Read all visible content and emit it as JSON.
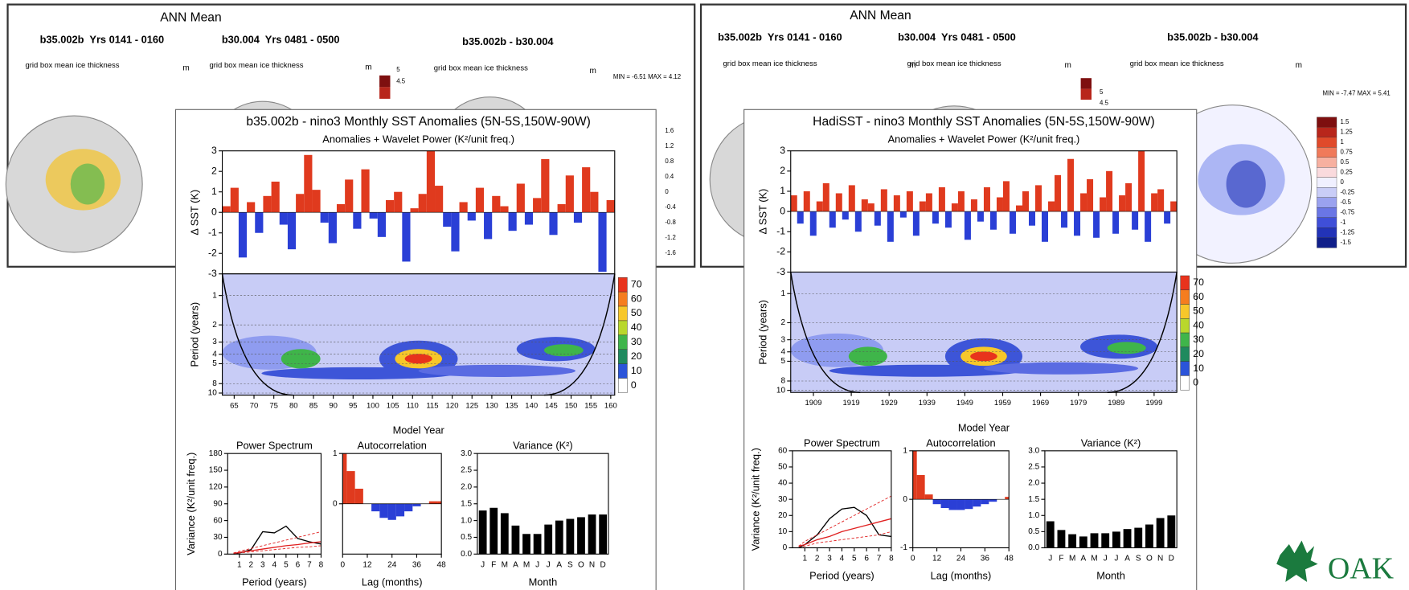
{
  "map_panels": [
    {
      "title": "ANN Mean",
      "headers": [
        "b35.002b  Yrs 0141 - 0160",
        "b30.004  Yrs 0481 - 0500",
        "b35.002b - b30.004"
      ],
      "plot_labels": [
        "grid box mean ice thickness",
        "grid box mean ice thickness",
        "grid box mean ice thickness"
      ],
      "units": [
        "m",
        "m",
        "m"
      ],
      "minmax": "MIN = -6.51 MAX = 4.12",
      "colorbar_a": [
        "5",
        "4.5"
      ],
      "colorbar_b": [
        "1.6",
        "1.2",
        "0.8",
        "0.4",
        "0",
        "-0.4",
        "-0.8",
        "-1.2",
        "-1.6"
      ]
    },
    {
      "title": "ANN Mean",
      "headers": [
        "b35.002b  Yrs 0141 - 0160",
        "b30.004  Yrs 0481 - 0500",
        "b35.002b - b30.004"
      ],
      "plot_labels": [
        "grid box mean ice thickness",
        "grid box mean ice thickness",
        "grid box mean ice thickness"
      ],
      "units": [
        "m",
        "m",
        "m"
      ],
      "minmax": "MIN = -7.47 MAX = 5.41",
      "colorbar_a": [
        "5",
        "4.5"
      ],
      "colorbar_b": [
        "1.5",
        "1.25",
        "1",
        "0.75",
        "0.5",
        "0.25",
        "0",
        "-0.25",
        "-0.5",
        "-0.75",
        "-1",
        "-1.25",
        "-1.5"
      ]
    }
  ],
  "logo": "OAK",
  "chart_data": [
    {
      "type": "anomaly",
      "title": "b35.002b - nino3 Monthly SST Anomalies (5N-5S,150W-90W)",
      "subtitle": "Anomalies + Wavelet Power (K²/unit freq.)",
      "ylabel": "Δ SST (K)",
      "ylim": [
        -3,
        3
      ],
      "yticks": [
        -3,
        -2,
        -1,
        0,
        1,
        2,
        3
      ],
      "pos_color": "#e03a1e",
      "neg_color": "#2a3fd6",
      "values": [
        0.3,
        1.2,
        -2.2,
        0.5,
        -1.0,
        0.8,
        1.5,
        -0.6,
        -1.8,
        0.9,
        2.8,
        1.1,
        -0.5,
        -1.5,
        0.4,
        1.6,
        -0.8,
        2.1,
        -0.3,
        -1.2,
        0.6,
        1.0,
        -2.4,
        0.2,
        0.9,
        3.0,
        1.3,
        -0.7,
        -1.9,
        0.5,
        -0.4,
        1.2,
        -1.3,
        0.8,
        0.3,
        -0.9,
        1.4,
        -0.6,
        0.7,
        2.6,
        -1.1,
        0.4,
        1.8,
        -0.5,
        2.2,
        1.0,
        -2.9,
        0.6
      ]
    },
    {
      "type": "contour",
      "ylabel": "Period (years)",
      "xlabel": "Model Year",
      "log": true,
      "invert": true,
      "ylim": [
        0.6,
        10.5
      ],
      "yticks": [
        1,
        2,
        3,
        4,
        5,
        8,
        10
      ],
      "xlim": [
        62,
        161
      ],
      "xticks": [
        65,
        70,
        75,
        80,
        85,
        90,
        95,
        100,
        105,
        110,
        115,
        120,
        125,
        130,
        135,
        140,
        145,
        150,
        155,
        160
      ],
      "levels": [
        70,
        60,
        50,
        40,
        30,
        20,
        10,
        0
      ],
      "level_colors": [
        "#e8331c",
        "#f57d1f",
        "#f7c72a",
        "#b9d72c",
        "#3fb54a",
        "#1f8a5e",
        "#2b54d9",
        "#ffffff"
      ]
    },
    {
      "type": "line",
      "title": "Power Spectrum",
      "ylabel": "Variance (K²/unit freq.)",
      "xlabel": "Period (years)",
      "xlim": [
        0,
        8
      ],
      "xticks": [
        1,
        2,
        3,
        4,
        5,
        6,
        7,
        8
      ],
      "ylim": [
        0,
        180
      ],
      "yticks": [
        0,
        30,
        60,
        90,
        120,
        150,
        180
      ],
      "x": [
        0.5,
        1,
        2,
        3,
        4,
        5,
        6,
        7,
        8
      ],
      "series": [
        {
          "color": "#000000",
          "dash": false,
          "values": [
            0,
            2,
            8,
            40,
            38,
            50,
            28,
            22,
            18
          ]
        },
        {
          "color": "#e02020",
          "dash": false,
          "values": [
            1,
            3,
            6,
            9,
            12,
            15,
            17,
            20,
            22
          ]
        },
        {
          "color": "#e02020",
          "dash": true,
          "values": [
            2,
            5,
            10,
            15,
            20,
            25,
            30,
            35,
            40
          ]
        },
        {
          "color": "#e02020",
          "dash": true,
          "values": [
            1,
            2,
            4,
            6,
            8,
            10,
            12,
            13,
            15
          ]
        }
      ]
    },
    {
      "type": "area",
      "title": "Autocorrelation",
      "xlabel": "Lag (months)",
      "xlim": [
        0,
        48
      ],
      "xticks": [
        0,
        12,
        24,
        36,
        48
      ],
      "ylim": [
        -1,
        1
      ],
      "yticks": [
        0,
        1
      ],
      "pos_color": "#e03a1e",
      "neg_color": "#2a3fd6",
      "x": [
        0,
        4,
        8,
        12,
        16,
        20,
        24,
        28,
        32,
        36,
        40,
        44,
        48
      ],
      "values": [
        1,
        0.65,
        0.3,
        0,
        -0.15,
        -0.28,
        -0.32,
        -0.25,
        -0.15,
        -0.05,
        0,
        0.05,
        0.05
      ]
    },
    {
      "type": "bar",
      "title": "Variance (K²)",
      "xlabel": "Month",
      "ylim": [
        0,
        3
      ],
      "yticks": [
        {
          "value": 0,
          "label": "0.0"
        },
        0.5,
        {
          "value": 1,
          "label": "1.0"
        },
        1.5,
        {
          "value": 2,
          "label": "2.0"
        },
        2.5,
        {
          "value": 3,
          "label": "3.0"
        }
      ],
      "color": "#000000",
      "categories": [
        "J",
        "F",
        "M",
        "A",
        "M",
        "J",
        "J",
        "A",
        "S",
        "O",
        "N",
        "D"
      ],
      "values": [
        1.3,
        1.38,
        1.22,
        0.85,
        0.6,
        0.6,
        0.88,
        1.0,
        1.05,
        1.1,
        1.18,
        1.18
      ]
    },
    {
      "type": "anomaly",
      "title": "HadiSST - nino3 Monthly SST Anomalies (5N-5S,150W-90W)",
      "subtitle": "Anomalies + Wavelet Power (K²/unit freq.)",
      "ylabel": "Δ SST (K)",
      "ylim": [
        -3,
        3
      ],
      "yticks": [
        -3,
        -2,
        -1,
        0,
        1,
        2,
        3
      ],
      "pos_color": "#e03a1e",
      "neg_color": "#2a3fd6",
      "values": [
        0.8,
        -0.6,
        1.0,
        -1.2,
        0.5,
        1.4,
        -0.8,
        0.9,
        -0.4,
        1.3,
        -1.0,
        0.6,
        0.4,
        -0.7,
        1.1,
        -1.5,
        0.8,
        -0.3,
        1.0,
        -1.2,
        0.5,
        0.9,
        -0.6,
        1.2,
        -0.8,
        0.4,
        1.0,
        -1.4,
        0.6,
        -0.5,
        1.2,
        -0.9,
        0.7,
        1.5,
        -1.1,
        0.3,
        1.0,
        -0.7,
        1.3,
        -1.5,
        0.5,
        1.8,
        -0.8,
        2.6,
        -1.2,
        0.9,
        1.6,
        -1.3,
        0.7,
        2.0,
        -1.1,
        0.8,
        1.4,
        -0.9,
        3.0,
        -1.5,
        0.9,
        1.1,
        -0.6,
        0.5
      ]
    },
    {
      "type": "contour",
      "ylabel": "Period (years)",
      "xlabel": "Model Year",
      "log": true,
      "invert": true,
      "ylim": [
        0.6,
        10.5
      ],
      "yticks": [
        1,
        2,
        3,
        4,
        5,
        8,
        10
      ],
      "xlim": [
        1903,
        2005
      ],
      "xticks": [
        1909,
        1919,
        1929,
        1939,
        1949,
        1959,
        1969,
        1979,
        1989,
        1999
      ],
      "levels": [
        70,
        60,
        50,
        40,
        30,
        20,
        10,
        0
      ],
      "level_colors": [
        "#e8331c",
        "#f57d1f",
        "#f7c72a",
        "#b9d72c",
        "#3fb54a",
        "#1f8a5e",
        "#2b54d9",
        "#ffffff"
      ]
    },
    {
      "type": "line",
      "title": "Power Spectrum",
      "ylabel": "Variance (K²/unit freq.)",
      "xlabel": "Period (years)",
      "xlim": [
        0,
        8
      ],
      "xticks": [
        1,
        2,
        3,
        4,
        5,
        6,
        7,
        8
      ],
      "ylim": [
        0,
        60
      ],
      "yticks": [
        0,
        10,
        20,
        30,
        40,
        50,
        60
      ],
      "x": [
        0.5,
        1,
        2,
        3,
        4,
        5,
        6,
        7,
        8
      ],
      "series": [
        {
          "color": "#000000",
          "dash": false,
          "values": [
            0,
            2,
            8,
            18,
            24,
            25,
            20,
            8,
            7
          ]
        },
        {
          "color": "#e02020",
          "dash": false,
          "values": [
            1,
            2,
            5,
            7,
            10,
            12,
            14,
            16,
            18
          ]
        },
        {
          "color": "#e02020",
          "dash": true,
          "values": [
            1,
            4,
            8,
            12,
            16,
            20,
            24,
            28,
            32
          ]
        },
        {
          "color": "#e02020",
          "dash": true,
          "values": [
            0,
            1,
            3,
            4,
            5,
            6,
            7,
            8,
            10
          ]
        }
      ]
    },
    {
      "type": "area",
      "title": "Autocorrelation",
      "xlabel": "Lag (months)",
      "xlim": [
        0,
        48
      ],
      "xticks": [
        0,
        12,
        24,
        36,
        48
      ],
      "ylim": [
        -1,
        1
      ],
      "yticks": [
        -1,
        0,
        1
      ],
      "pos_color": "#e03a1e",
      "neg_color": "#2a3fd6",
      "x": [
        0,
        4,
        8,
        12,
        16,
        20,
        24,
        28,
        32,
        36,
        40,
        44,
        48
      ],
      "values": [
        1,
        0.5,
        0.1,
        -0.1,
        -0.18,
        -0.22,
        -0.22,
        -0.2,
        -0.15,
        -0.1,
        -0.05,
        0,
        0.05
      ]
    },
    {
      "type": "bar",
      "title": "Variance (K²)",
      "xlabel": "Month",
      "ylim": [
        0,
        3
      ],
      "yticks": [
        {
          "value": 0,
          "label": "0.0"
        },
        0.5,
        {
          "value": 1,
          "label": "1.0"
        },
        1.5,
        {
          "value": 2,
          "label": "2.0"
        },
        2.5,
        {
          "value": 3,
          "label": "3.0"
        }
      ],
      "color": "#000000",
      "categories": [
        "J",
        "F",
        "M",
        "A",
        "M",
        "J",
        "J",
        "A",
        "S",
        "O",
        "N",
        "D"
      ],
      "values": [
        0.82,
        0.55,
        0.42,
        0.35,
        0.45,
        0.45,
        0.5,
        0.58,
        0.62,
        0.72,
        0.92,
        1.0
      ]
    }
  ]
}
